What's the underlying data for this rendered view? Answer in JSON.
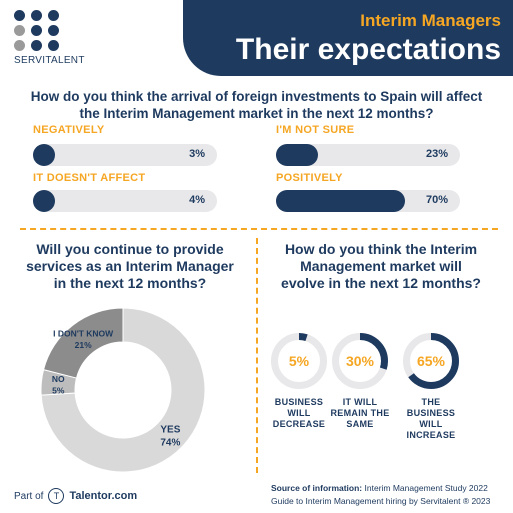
{
  "logo": {
    "text": "SERVITALENT",
    "dot_colors": [
      "#1e3a5f",
      "#1e3a5f",
      "#1e3a5f",
      "#9a9a9a",
      "#1e3a5f",
      "#1e3a5f",
      "#9a9a9a",
      "#1e3a5f",
      "#1e3a5f"
    ]
  },
  "header": {
    "subtitle": "Interim Managers",
    "title": "Their expectations"
  },
  "colors": {
    "navy": "#1e3a5f",
    "orange": "#f5a623",
    "light_gray": "#e8e8ea",
    "mid_gray": "#d9d9d9",
    "dark_gray": "#8c8c8c"
  },
  "q1": {
    "question_line1": "How do you think the arrival of foreign investments to Spain will affect",
    "question_line2": "the Interim Management market in the next 12 months?"
  },
  "q2": {
    "question_line1": "Will you continue to provide",
    "question_line2": "services as an Interim Manager",
    "question_line3": "in the next 12 months?"
  },
  "q3": {
    "question_line1": "How do you think the Interim",
    "question_line2": "Management market will",
    "question_line3": "evolve in the next 12 months?"
  },
  "chart_data": [
    {
      "type": "bar",
      "orientation": "horizontal",
      "categories": [
        "NEGATIVELY",
        "IT DOESN'T AFFECT",
        "I'M NOT SURE",
        "POSITIVELY"
      ],
      "values": [
        3,
        4,
        23,
        70
      ],
      "value_labels": [
        "3%",
        "4%",
        "23%",
        "70%"
      ],
      "unit": "%",
      "ylim": [
        0,
        100
      ]
    },
    {
      "type": "pie",
      "donut": true,
      "categories": [
        "YES",
        "NO",
        "I DON'T KNOW"
      ],
      "values": [
        74,
        5,
        21
      ],
      "value_labels": [
        "74%",
        "5%",
        "21%"
      ],
      "colors": [
        "#d9d9d9",
        "#bdbdbd",
        "#8c8c8c"
      ]
    },
    {
      "type": "pie",
      "donut": true,
      "categories": [
        "BUSINESS WILL DECREASE",
        "IT WILL REMAIN THE SAME",
        "THE BUSINESS WILL INCREASE"
      ],
      "values": [
        5,
        30,
        65
      ],
      "value_labels": [
        "5%",
        "30%",
        "65%"
      ]
    }
  ],
  "ring_labels": [
    [
      "BUSINESS",
      "WILL",
      "DECREASE"
    ],
    [
      "IT WILL",
      "REMAIN THE",
      "SAME"
    ],
    [
      "THE BUSINESS",
      "WILL",
      "INCREASE"
    ]
  ],
  "footer": {
    "part_of": "Part of",
    "talentor_mark": "T",
    "talentor": "Talentor.com",
    "source_label": "Source of information:",
    "source_value": "Interim Management Study 2022",
    "guide": "Guide to Interim Management hiring by Servitalent ® 2023"
  }
}
